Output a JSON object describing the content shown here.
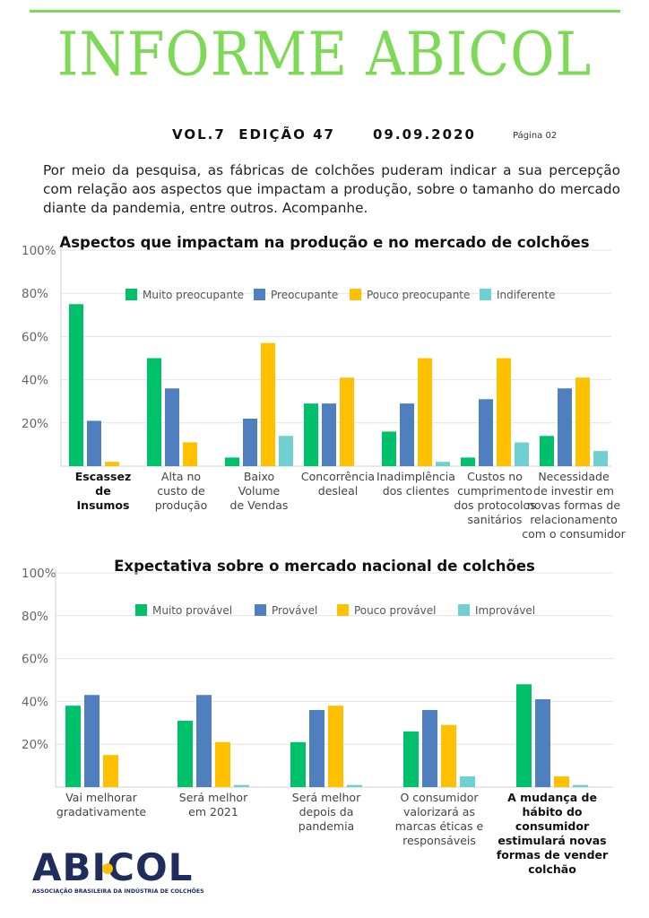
{
  "header": {
    "title": "INFORME ABICOL",
    "issue": "VOL.7  EDIÇÃO 47",
    "date": "09.09.2020",
    "page": "Página 02"
  },
  "intro": "Por meio da pesquisa, as fábricas de colchões puderam indicar a sua percepção com relação aos aspectos que impactam a produção, sobre o tamanho do mercado diante da pandemia, entre outros. Acompanhe.",
  "colors": {
    "green": "#00c16b",
    "blue": "#4f7fbf",
    "yellow": "#ffc000",
    "teal": "#6fcfd1",
    "accent": "#7ed957"
  },
  "chart_data": [
    {
      "type": "bar",
      "title": "Aspectos que impactam na produção e no mercado de colchões",
      "ylim": [
        0,
        100
      ],
      "yticks": [
        "100%",
        "80%",
        "60%",
        "40%",
        "20%"
      ],
      "legend_position": "top",
      "grid": true,
      "categories": [
        [
          "Escassez",
          "de",
          "Insumos"
        ],
        [
          "Alta no",
          "custo de",
          "produção"
        ],
        [
          "Baixo",
          "Volume",
          "de Vendas"
        ],
        [
          "Concorrência",
          "desleal"
        ],
        [
          "Inadimplência",
          "dos clientes"
        ],
        [
          "Custos no",
          "cumprimento",
          "dos protocolos",
          "sanitários"
        ],
        [
          "Necessidade",
          "de investir em",
          "novas formas de",
          "relacionamento",
          "com o consumidor"
        ]
      ],
      "bold_category": 0,
      "series": [
        {
          "name": "Muito preocupante",
          "color": "#00c16b",
          "values": [
            75,
            50,
            4,
            29,
            16,
            4,
            14
          ]
        },
        {
          "name": "Preocupante",
          "color": "#4f7fbf",
          "values": [
            21,
            36,
            22,
            29,
            29,
            31,
            36
          ]
        },
        {
          "name": "Pouco preocupante",
          "color": "#ffc000",
          "values": [
            2,
            11,
            57,
            41,
            50,
            50,
            41
          ]
        },
        {
          "name": "Indiferente",
          "color": "#6fcfd1",
          "values": [
            0,
            0,
            14,
            0,
            2,
            11,
            7
          ]
        }
      ]
    },
    {
      "type": "bar",
      "title": "Expectativa sobre o mercado nacional de colchões",
      "ylim": [
        0,
        100
      ],
      "yticks": [
        "100%",
        "80%",
        "60%",
        "40%",
        "20%"
      ],
      "legend_position": "top",
      "grid": true,
      "categories": [
        [
          "Vai melhorar",
          "gradativamente"
        ],
        [
          "Será melhor",
          "em 2021"
        ],
        [
          "Será melhor",
          "depois da",
          "pandemia"
        ],
        [
          "O consumidor",
          "valorizará as",
          "marcas éticas e",
          "responsáveis"
        ],
        [
          "A mudança de",
          "hábito do",
          "consumidor",
          "estimulará novas",
          "formas de vender",
          "colchão"
        ]
      ],
      "bold_category": 4,
      "series": [
        {
          "name": "Muito provável",
          "color": "#00c16b",
          "values": [
            38,
            31,
            21,
            26,
            48
          ]
        },
        {
          "name": "Provável",
          "color": "#4f7fbf",
          "values": [
            43,
            43,
            36,
            36,
            41
          ]
        },
        {
          "name": "Pouco provável",
          "color": "#ffc000",
          "values": [
            15,
            21,
            38,
            29,
            5
          ]
        },
        {
          "name": "Improvável",
          "color": "#6fcfd1",
          "values": [
            0,
            1,
            1,
            5,
            1
          ]
        }
      ]
    }
  ],
  "logo": {
    "name": "ABICOL",
    "subtitle": "ASSOCIAÇÃO BRASILEIRA DA INDÚSTRIA DE COLCHÕES"
  }
}
